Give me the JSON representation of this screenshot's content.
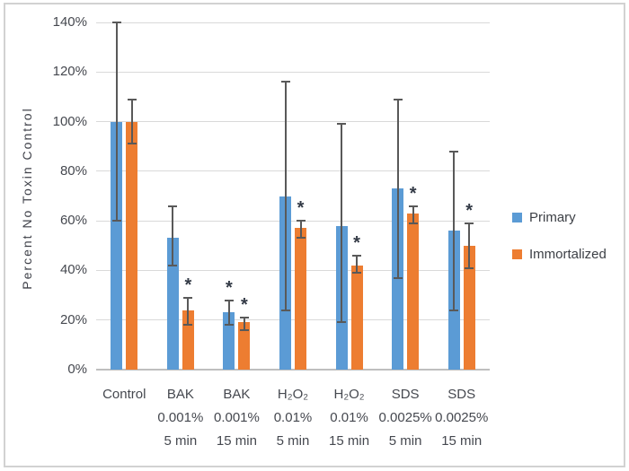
{
  "frame": {
    "border_color": "#d2d2d2",
    "background": "#ffffff"
  },
  "colors": {
    "grid": "#d9d9d9",
    "axis_line": "#bfbfbf",
    "axis_text": "#45484f",
    "error_bar": "#595959",
    "significance": "#333a46"
  },
  "chart_data": {
    "type": "bar",
    "title": "",
    "xlabel": "",
    "ylabel": "Percent No Toxin Control",
    "ylim": [
      0,
      140
    ],
    "grid": true,
    "legend_position": "right",
    "y_ticks": [
      "0%",
      "20%",
      "40%",
      "60%",
      "80%",
      "100%",
      "120%",
      "140%"
    ],
    "categories": [
      [
        "Control"
      ],
      [
        "BAK",
        "0.001%",
        "5 min"
      ],
      [
        "BAK",
        "0.001%",
        "15 min"
      ],
      [
        "H₂O₂",
        "0.01%",
        "5 min"
      ],
      [
        "H₂O₂",
        "0.01%",
        "15 min"
      ],
      [
        "SDS",
        "0.0025%",
        "5 min"
      ],
      [
        "SDS",
        "0.0025%",
        "15 min"
      ]
    ],
    "significance_marker": "*",
    "series": [
      {
        "name": "Primary",
        "color": "#5b9bd5",
        "values": [
          100,
          53,
          23,
          70,
          58,
          73,
          56
        ],
        "error_high": [
          140,
          66,
          28,
          116,
          99,
          109,
          88
        ],
        "error_low": [
          60,
          42,
          18,
          24,
          19,
          37,
          24
        ],
        "significant": [
          false,
          false,
          true,
          false,
          false,
          false,
          false
        ]
      },
      {
        "name": "Immortalized",
        "color": "#ed7d31",
        "values": [
          100,
          24,
          19,
          57,
          42,
          63,
          50
        ],
        "error_high": [
          109,
          29,
          21,
          60,
          46,
          66,
          59
        ],
        "error_low": [
          91,
          18,
          16,
          53,
          39,
          59,
          41
        ],
        "significant": [
          false,
          true,
          true,
          true,
          true,
          true,
          true
        ]
      }
    ]
  }
}
